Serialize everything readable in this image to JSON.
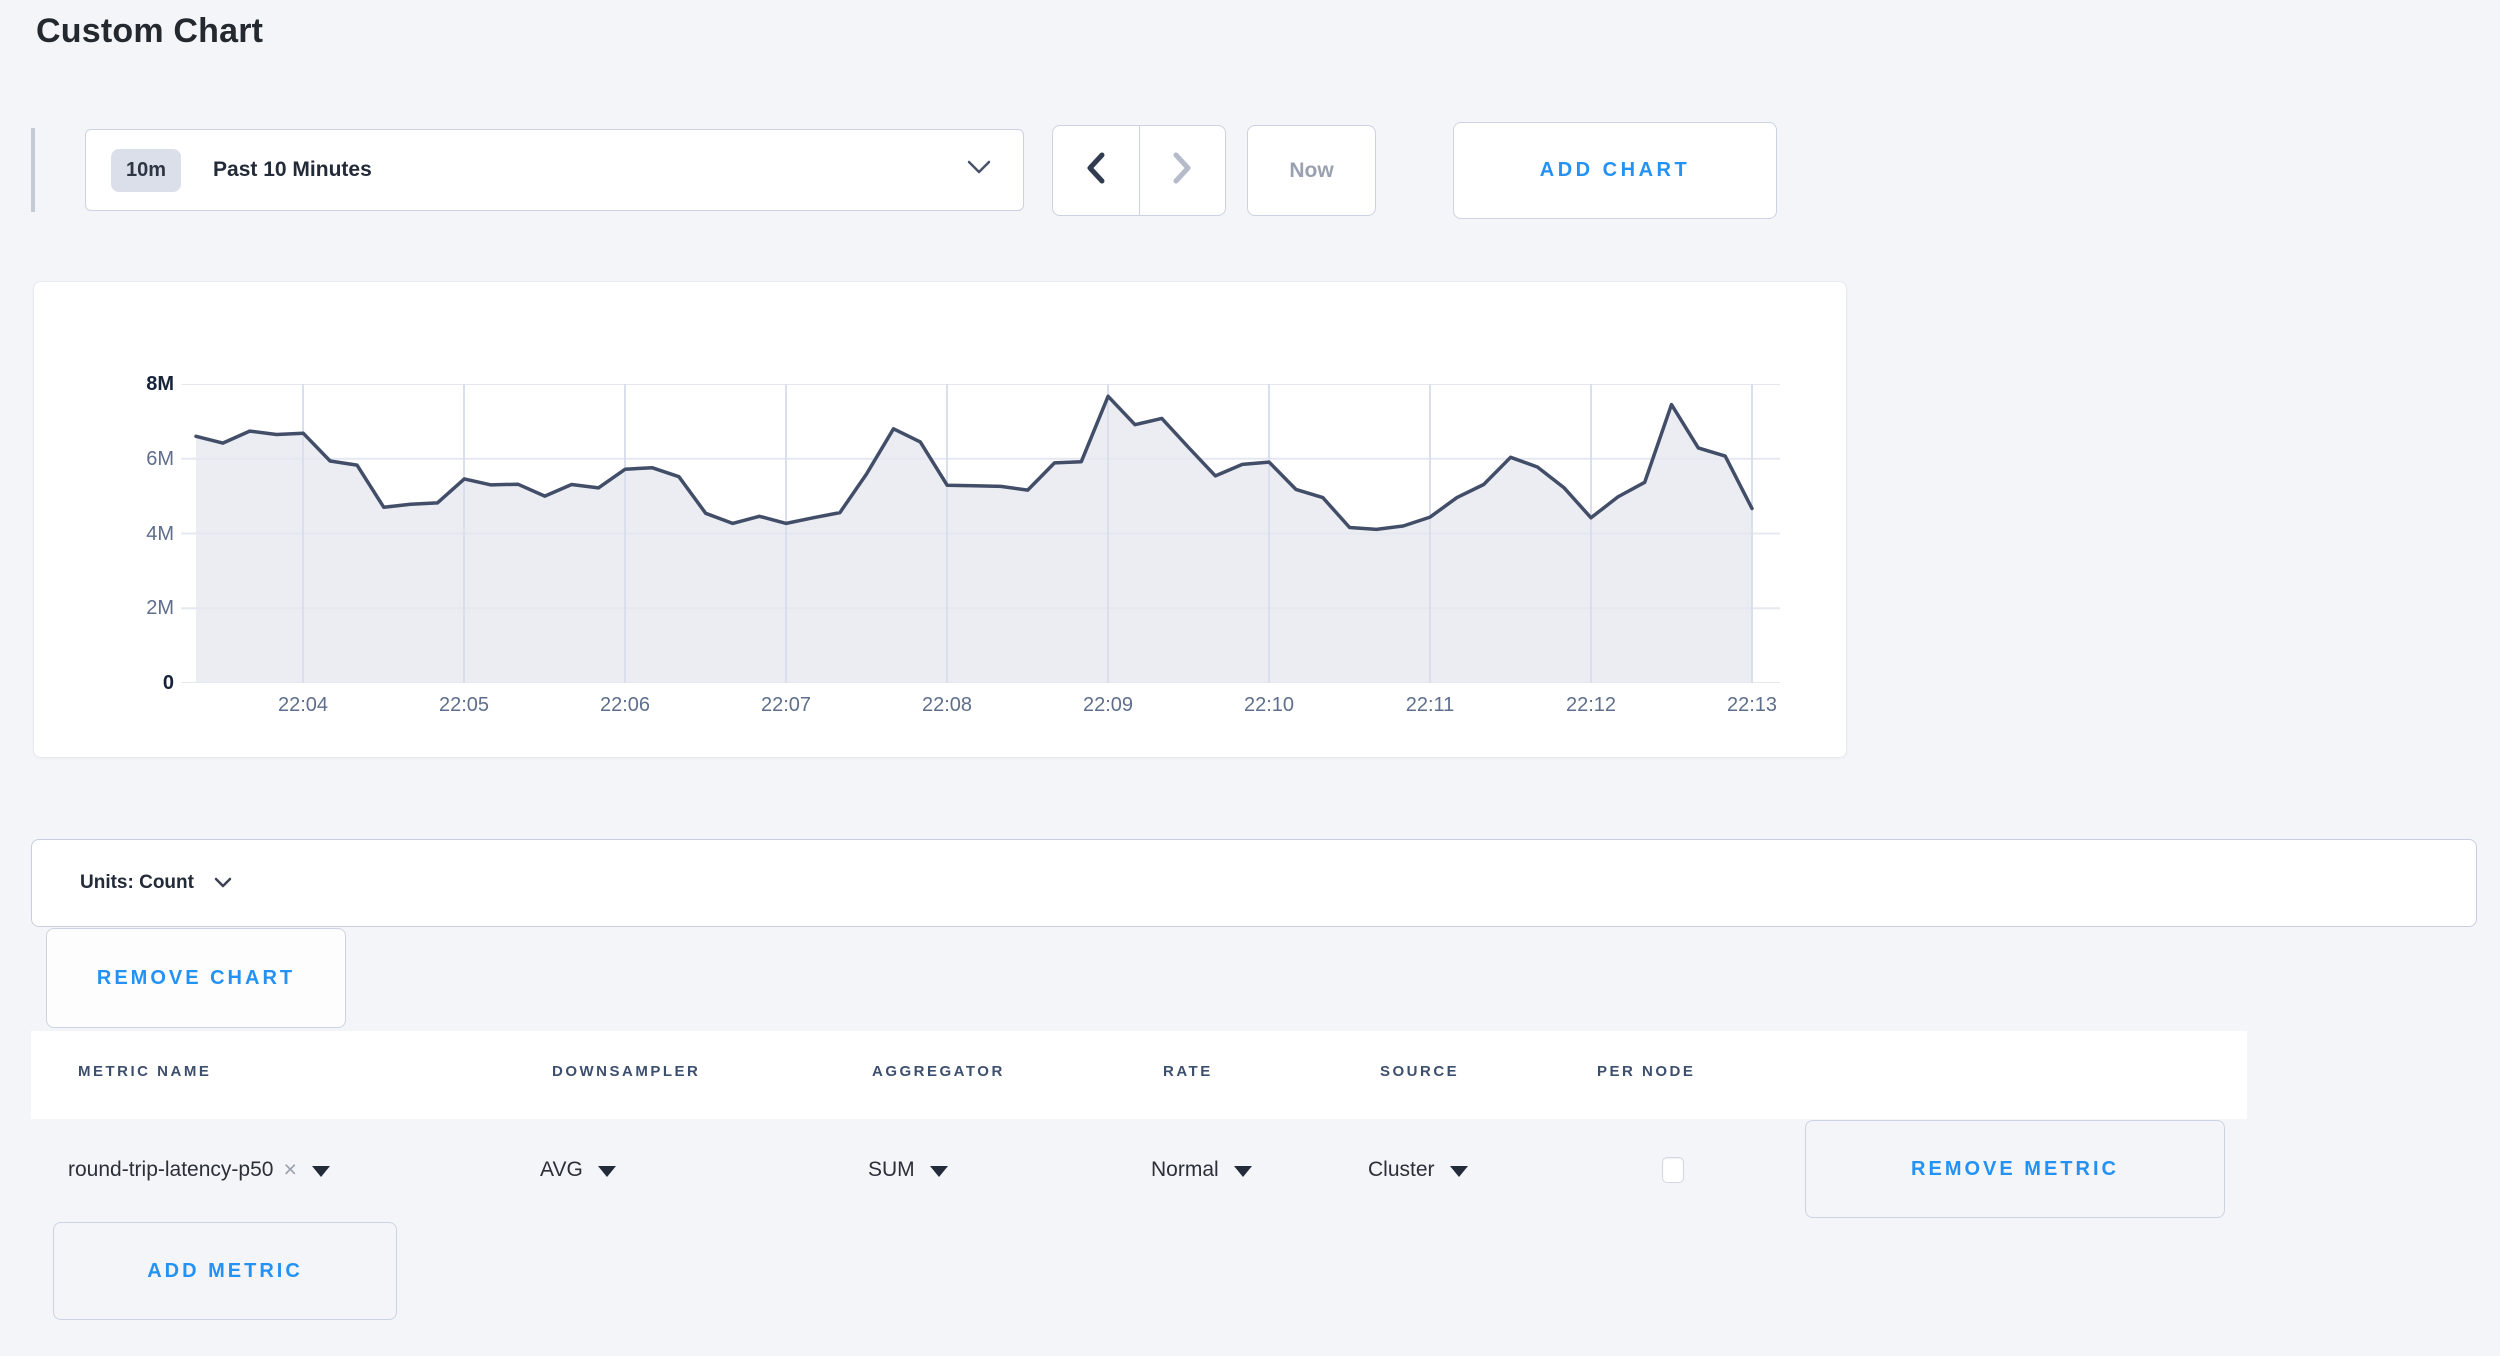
{
  "page": {
    "title": "Custom Chart"
  },
  "toolbar": {
    "time_window_badge": "10m",
    "time_window_label": "Past 10 Minutes",
    "now_label": "Now",
    "add_chart_label": "ADD CHART"
  },
  "chart_data": {
    "type": "area",
    "title": "",
    "xlabel": "",
    "ylabel": "",
    "unit": "Count",
    "x_start_time": "22:03:20",
    "x_interval_seconds": 10,
    "x_tick_labels": [
      "22:04",
      "22:05",
      "22:06",
      "22:07",
      "22:08",
      "22:09",
      "22:10",
      "22:11",
      "22:12",
      "22:13"
    ],
    "y_tick_labels": [
      "0",
      "2M",
      "4M",
      "6M",
      "8M"
    ],
    "ylim": [
      0,
      8000000
    ],
    "grid": true,
    "legend_position": "none",
    "series": [
      {
        "name": "round-trip-latency-p50",
        "values_millions": [
          6.6,
          6.42,
          6.74,
          6.65,
          6.68,
          5.94,
          5.83,
          4.7,
          4.78,
          4.82,
          5.46,
          5.3,
          5.32,
          5.0,
          5.31,
          5.22,
          5.72,
          5.76,
          5.52,
          4.54,
          4.27,
          4.46,
          4.27,
          4.42,
          4.56,
          5.6,
          6.8,
          6.45,
          5.29,
          5.28,
          5.26,
          5.16,
          5.89,
          5.92,
          7.67,
          6.91,
          7.08,
          6.3,
          5.54,
          5.85,
          5.91,
          5.18,
          4.96,
          4.16,
          4.11,
          4.2,
          4.44,
          4.96,
          5.31,
          6.04,
          5.78,
          5.22,
          4.42,
          4.98,
          5.37,
          7.45,
          6.29,
          6.07,
          4.67
        ]
      }
    ],
    "colors": {
      "line": "#424e68",
      "fill": "#ebedf3",
      "v_grid": "#d9dfec",
      "h_grid": "#e5e8f0"
    }
  },
  "units_bar": {
    "label": "Units: Count"
  },
  "chart_actions": {
    "remove_chart_label": "REMOVE CHART"
  },
  "metrics_table": {
    "columns": [
      "METRIC NAME",
      "DOWNSAMPLER",
      "AGGREGATOR",
      "RATE",
      "SOURCE",
      "PER NODE"
    ],
    "row": {
      "metric_name": "round-trip-latency-p50",
      "clear_icon": "×",
      "downsampler": "AVG",
      "aggregator": "SUM",
      "rate": "Normal",
      "source": "Cluster",
      "per_node_checked": false
    },
    "remove_metric_label": "REMOVE METRIC",
    "add_metric_label": "ADD METRIC"
  },
  "colors": {
    "accent_blue": "#2492f4",
    "page_background": "#f4f5f9"
  }
}
